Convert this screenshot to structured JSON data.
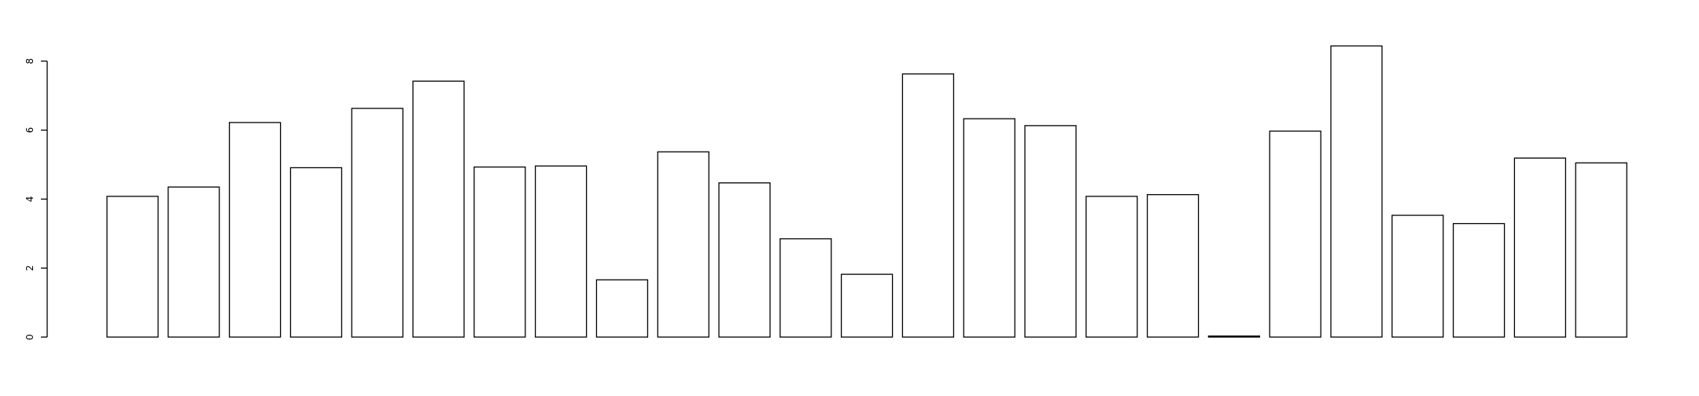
{
  "chart_data": {
    "type": "bar",
    "title": "",
    "xlabel": "",
    "ylabel": "",
    "ylim": [
      0,
      8.4
    ],
    "y_ticks": [
      0,
      2,
      4,
      6,
      8
    ],
    "y_tick_labels": [
      "0",
      "2",
      "4",
      "6",
      "8"
    ],
    "grid": false,
    "legend": "none",
    "bar_fill": "#ffffff",
    "bar_stroke": "#000000",
    "values": [
      4.08,
      4.35,
      6.22,
      4.91,
      6.63,
      7.42,
      4.93,
      4.96,
      1.66,
      5.37,
      4.47,
      2.85,
      1.82,
      7.63,
      6.33,
      6.13,
      4.08,
      4.13,
      0.03,
      5.97,
      8.44,
      3.53,
      3.29,
      5.19,
      5.05
    ]
  }
}
